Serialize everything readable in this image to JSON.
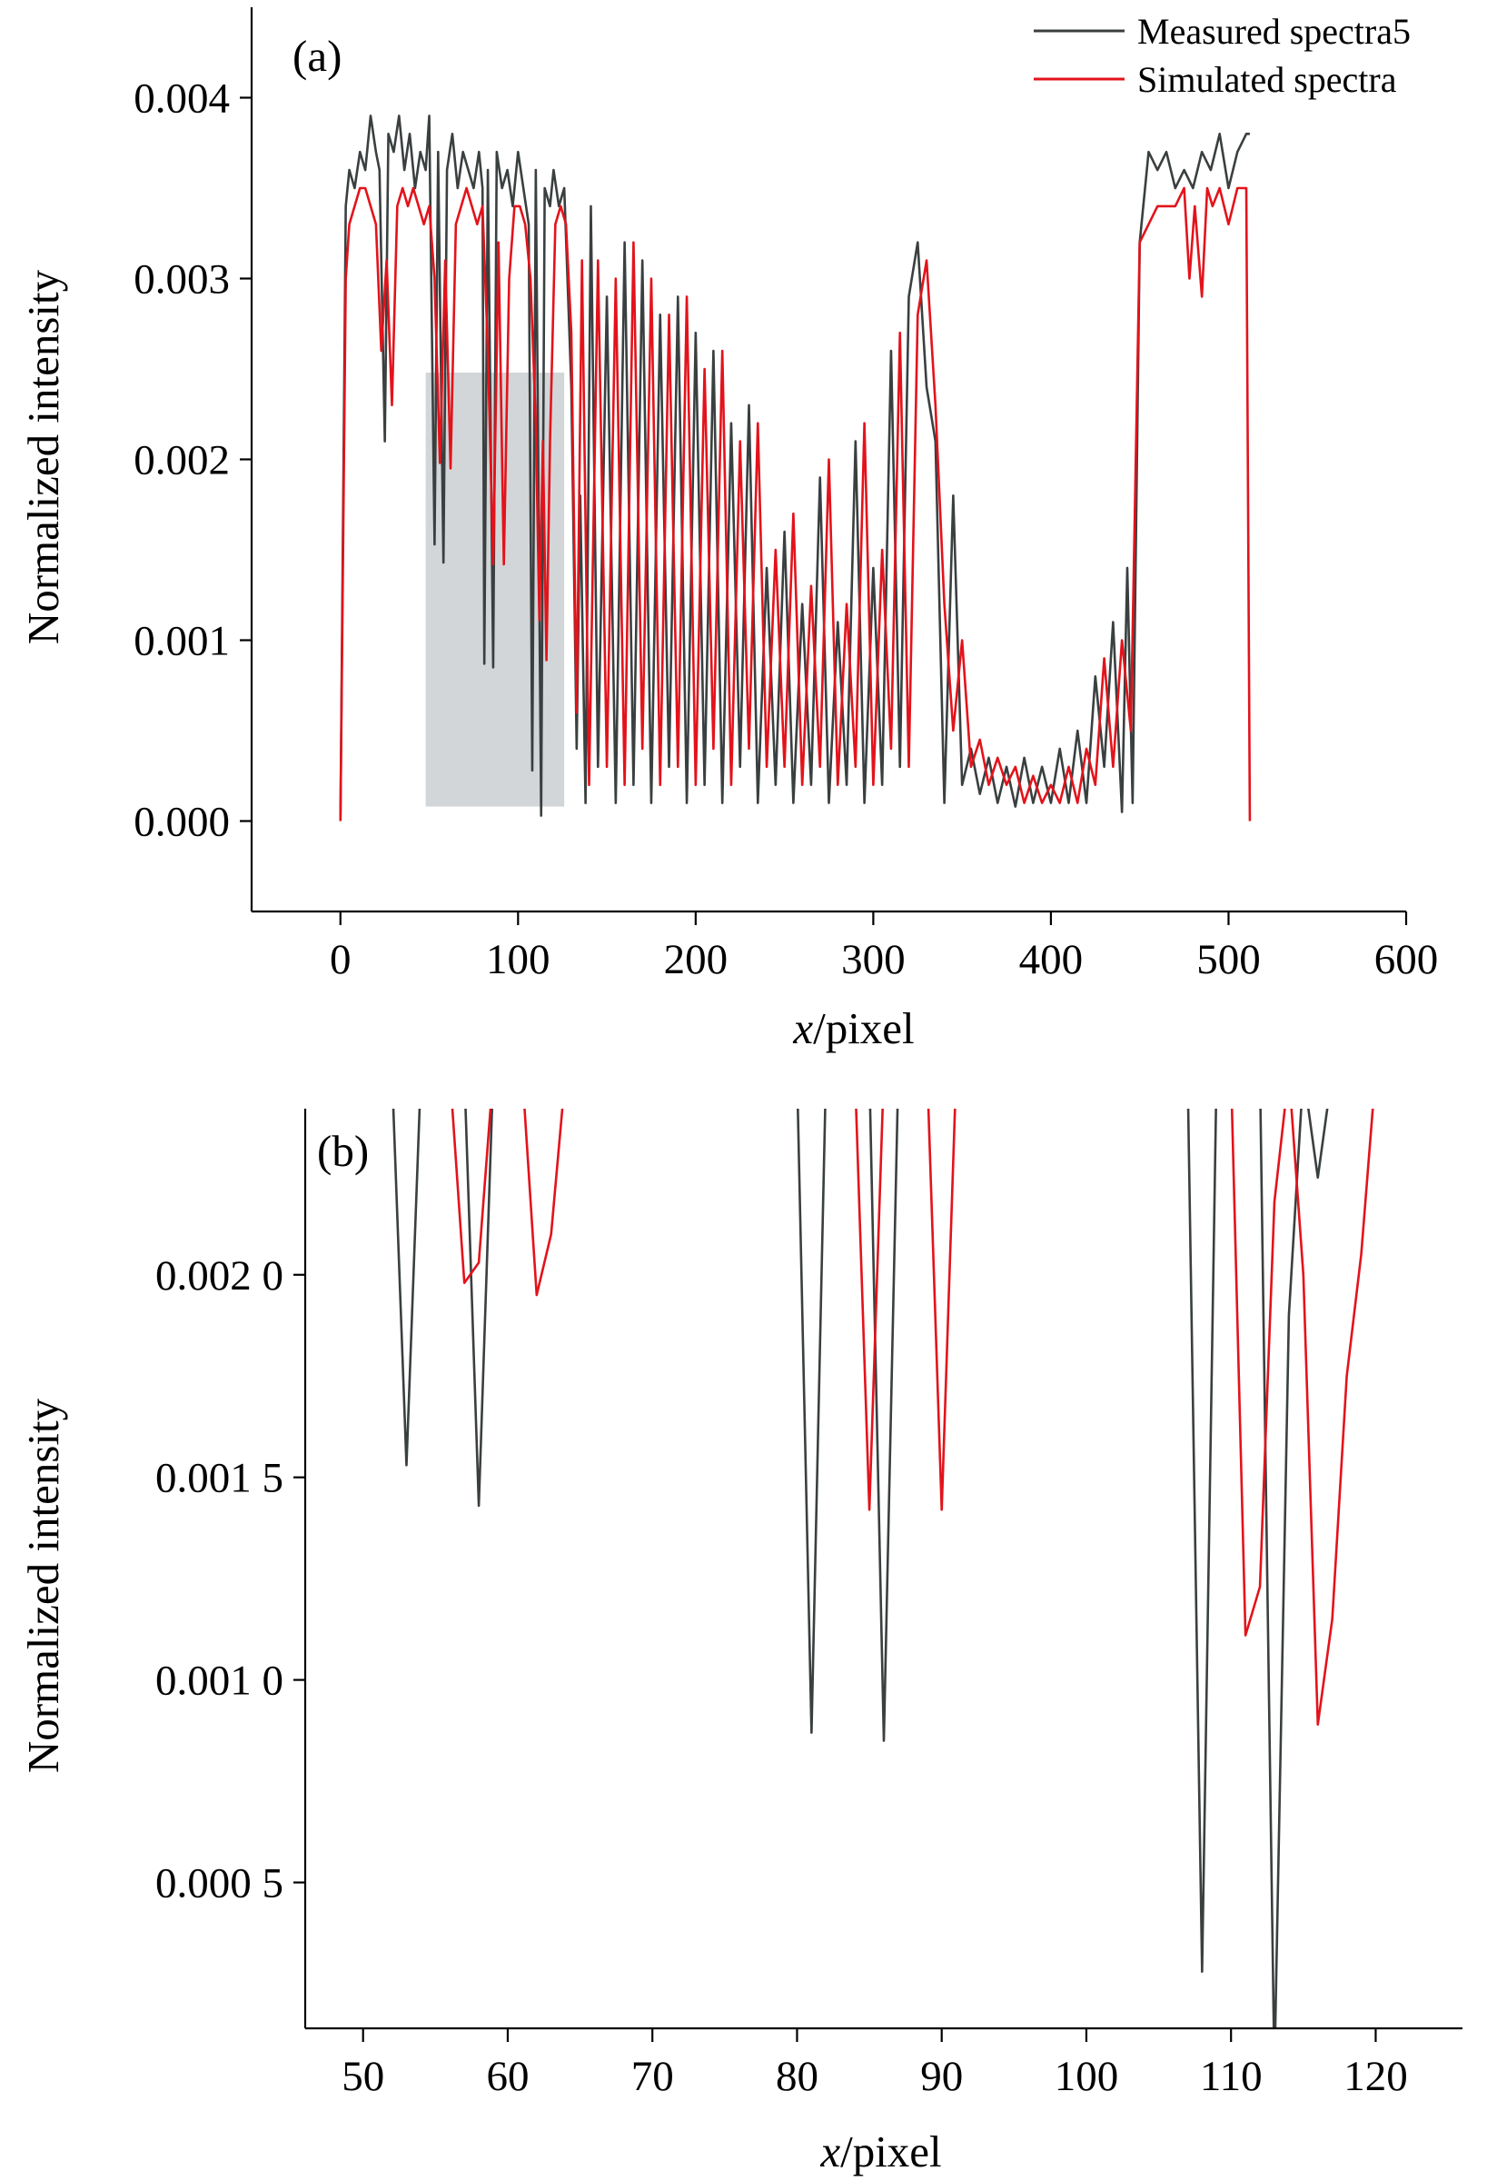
{
  "colors": {
    "measured": "#3a3f40",
    "simulated": "#e3131b",
    "highlight": "#d3d6d8",
    "axis": "#000000"
  },
  "chart_data": [
    {
      "type": "line",
      "panel_label": "(a)",
      "xlabel_italic": "x",
      "xlabel_rest": "/pixel",
      "ylabel": "Normalized intensity",
      "xlim": [
        -50,
        600
      ],
      "ylim": [
        -0.0005,
        0.0045
      ],
      "xticks": [
        0,
        100,
        200,
        300,
        400,
        500,
        600
      ],
      "xtick_labels": [
        "0",
        "100",
        "200",
        "300",
        "400",
        "500",
        "600"
      ],
      "yticks": [
        0.0,
        0.001,
        0.002,
        0.003,
        0.004
      ],
      "ytick_labels": [
        "0.000",
        "0.001",
        "0.002",
        "0.003",
        "0.004"
      ],
      "legend": {
        "position": "top-right",
        "entries": [
          "Measured spectra5",
          "Simulated spectra"
        ]
      },
      "highlight_region": {
        "x": [
          48,
          126
        ],
        "y": [
          8e-05,
          0.00248
        ]
      },
      "series": [
        {
          "name": "Measured spectra5",
          "x": [
            0,
            3,
            5,
            8,
            11,
            14,
            17,
            20,
            22,
            25,
            27,
            30,
            33,
            36,
            39,
            42,
            45,
            48,
            50,
            53,
            55,
            58,
            60,
            63,
            66,
            69,
            72,
            75,
            78,
            80,
            81,
            83,
            86,
            88,
            91,
            94,
            97,
            100,
            103,
            106,
            108,
            110,
            113,
            115,
            118,
            120,
            123,
            126,
            130,
            133,
            135,
            138,
            141,
            145,
            150,
            155,
            160,
            165,
            170,
            175,
            180,
            185,
            190,
            195,
            200,
            205,
            210,
            215,
            220,
            225,
            230,
            235,
            240,
            245,
            250,
            255,
            260,
            265,
            270,
            275,
            280,
            285,
            290,
            295,
            300,
            305,
            310,
            315,
            320,
            325,
            330,
            335,
            340,
            345,
            350,
            355,
            360,
            365,
            370,
            375,
            380,
            385,
            390,
            395,
            400,
            405,
            410,
            415,
            420,
            425,
            430,
            435,
            440,
            443,
            446,
            450,
            455,
            460,
            465,
            470,
            475,
            480,
            485,
            490,
            495,
            500,
            505,
            510,
            512
          ],
          "y": [
            0.0,
            0.0034,
            0.0036,
            0.0035,
            0.0037,
            0.0036,
            0.0039,
            0.0037,
            0.0036,
            0.0021,
            0.0038,
            0.0037,
            0.0039,
            0.0036,
            0.0038,
            0.0035,
            0.0037,
            0.0036,
            0.0039,
            0.00153,
            0.0037,
            0.00143,
            0.0036,
            0.0038,
            0.0035,
            0.0037,
            0.0036,
            0.0035,
            0.0037,
            0.0035,
            0.00087,
            0.0036,
            0.00085,
            0.0037,
            0.0035,
            0.0036,
            0.0034,
            0.0037,
            0.0035,
            0.0033,
            0.00028,
            0.0036,
            3e-05,
            0.0035,
            0.0034,
            0.0036,
            0.0034,
            0.0035,
            0.0024,
            0.0004,
            0.0018,
            0.0001,
            0.0034,
            0.0003,
            0.0029,
            0.0001,
            0.0032,
            0.0002,
            0.0031,
            0.0001,
            0.0028,
            0.0003,
            0.0029,
            0.0001,
            0.0027,
            0.0002,
            0.0026,
            0.0001,
            0.0022,
            0.0003,
            0.0023,
            0.0001,
            0.0014,
            0.0002,
            0.0016,
            0.0001,
            0.0012,
            0.0002,
            0.0019,
            0.0001,
            0.0011,
            0.0002,
            0.0021,
            0.0001,
            0.0014,
            0.0002,
            0.0026,
            0.0003,
            0.0029,
            0.0032,
            0.0024,
            0.0021,
            0.0001,
            0.0018,
            0.0002,
            0.0004,
            0.00015,
            0.00035,
            0.0001,
            0.0003,
            8e-05,
            0.00035,
            0.0001,
            0.0003,
            0.0001,
            0.0004,
            0.0001,
            0.0005,
            0.0001,
            0.0008,
            0.0003,
            0.0011,
            5e-05,
            0.0014,
            0.0001,
            0.0032,
            0.0037,
            0.0036,
            0.0037,
            0.0035,
            0.0036,
            0.0035,
            0.0037,
            0.0036,
            0.0038,
            0.0035,
            0.0037,
            0.0038,
            0.0038
          ]
        },
        {
          "name": "Simulated spectra",
          "x": [
            0,
            3,
            5,
            8,
            11,
            14,
            17,
            20,
            23,
            26,
            29,
            32,
            35,
            38,
            41,
            44,
            47,
            50,
            53,
            56,
            59,
            62,
            65,
            68,
            71,
            74,
            77,
            80,
            83,
            86,
            89,
            92,
            95,
            98,
            101,
            104,
            107,
            110,
            112,
            114,
            116,
            118,
            121,
            124,
            127,
            130,
            133,
            136,
            140,
            145,
            150,
            155,
            160,
            165,
            170,
            175,
            180,
            185,
            190,
            195,
            200,
            205,
            210,
            215,
            220,
            225,
            230,
            235,
            240,
            245,
            250,
            255,
            260,
            265,
            270,
            275,
            280,
            285,
            290,
            295,
            300,
            305,
            310,
            315,
            320,
            325,
            330,
            335,
            340,
            345,
            350,
            355,
            360,
            365,
            370,
            375,
            380,
            385,
            390,
            395,
            400,
            405,
            410,
            415,
            420,
            425,
            430,
            435,
            440,
            445,
            450,
            455,
            460,
            465,
            470,
            475,
            478,
            481,
            485,
            488,
            491,
            495,
            500,
            505,
            510,
            512
          ],
          "y": [
            0.0,
            0.003,
            0.0033,
            0.0034,
            0.0035,
            0.0035,
            0.0034,
            0.0033,
            0.0026,
            0.0031,
            0.0023,
            0.0034,
            0.0035,
            0.0034,
            0.0035,
            0.0034,
            0.0033,
            0.0034,
            0.003,
            0.00198,
            0.0031,
            0.00195,
            0.0033,
            0.0034,
            0.0035,
            0.0034,
            0.0033,
            0.0034,
            0.0026,
            0.00142,
            0.0032,
            0.00142,
            0.003,
            0.0034,
            0.0034,
            0.0033,
            0.003,
            0.0022,
            0.00111,
            0.0021,
            0.00089,
            0.0021,
            0.0033,
            0.0034,
            0.0033,
            0.0027,
            0.0006,
            0.0031,
            0.0002,
            0.0031,
            0.0003,
            0.003,
            0.0002,
            0.0032,
            0.0004,
            0.003,
            0.0002,
            0.0028,
            0.0003,
            0.0029,
            0.0002,
            0.0025,
            0.0004,
            0.0026,
            0.0002,
            0.0021,
            0.0004,
            0.0022,
            0.0003,
            0.0015,
            0.0003,
            0.0017,
            0.0002,
            0.0013,
            0.0003,
            0.002,
            0.0002,
            0.0012,
            0.0003,
            0.0022,
            0.0002,
            0.0015,
            0.0004,
            0.0027,
            0.0003,
            0.0028,
            0.0031,
            0.0023,
            0.0012,
            0.0005,
            0.001,
            0.0003,
            0.00045,
            0.0002,
            0.00035,
            0.0002,
            0.0003,
            0.0001,
            0.00025,
            0.0001,
            0.0002,
            0.0001,
            0.0003,
            0.0001,
            0.0004,
            0.0002,
            0.0009,
            0.0003,
            0.001,
            0.0005,
            0.0032,
            0.0033,
            0.0034,
            0.0034,
            0.0034,
            0.0035,
            0.003,
            0.0034,
            0.0029,
            0.0035,
            0.0034,
            0.0035,
            0.0033,
            0.0035,
            0.0035,
            0.0
          ]
        }
      ]
    },
    {
      "type": "line",
      "panel_label": "(b)",
      "xlabel_italic": "x",
      "xlabel_rest": "/pixel",
      "ylabel": "Normalized intensity",
      "xlim": [
        46,
        126
      ],
      "ylim": [
        0.00014,
        0.00241
      ],
      "xticks": [
        50,
        60,
        70,
        80,
        90,
        100,
        110,
        120
      ],
      "xtick_labels": [
        "50",
        "60",
        "70",
        "80",
        "90",
        "100",
        "110",
        "120"
      ],
      "yticks": [
        0.0005,
        0.001,
        0.0015,
        0.002
      ],
      "ytick_labels": [
        "0.000 5",
        "0.001 0",
        "0.001 5",
        "0.002 0"
      ],
      "series": [
        {
          "name": "Measured spectra5",
          "x": [
            52,
            53,
            54,
            57,
            58,
            59,
            80,
            81,
            82,
            85,
            86,
            87,
            107,
            108,
            109,
            112,
            113,
            114,
            115,
            116,
            117
          ],
          "y": [
            0.0025,
            0.00153,
            0.0025,
            0.0025,
            0.00143,
            0.0025,
            0.0025,
            0.00087,
            0.0025,
            0.0025,
            0.00085,
            0.0025,
            0.0025,
            0.00028,
            0.0025,
            0.0025,
            3e-05,
            0.0019,
            0.0025,
            0.00224,
            0.0025
          ]
        },
        {
          "name": "Simulated spectra",
          "x": [
            56,
            57,
            58,
            59,
            61,
            62,
            63,
            64,
            84,
            85,
            86,
            89,
            90,
            91,
            110,
            111,
            112,
            113,
            114,
            115,
            116,
            117,
            118,
            119,
            120
          ],
          "y": [
            0.0025,
            0.00198,
            0.00203,
            0.0025,
            0.0025,
            0.00195,
            0.0021,
            0.0025,
            0.0025,
            0.00142,
            0.0025,
            0.0025,
            0.00142,
            0.0025,
            0.0025,
            0.00111,
            0.00123,
            0.00218,
            0.0025,
            0.002,
            0.00089,
            0.00115,
            0.00175,
            0.00205,
            0.0025
          ]
        }
      ]
    }
  ]
}
